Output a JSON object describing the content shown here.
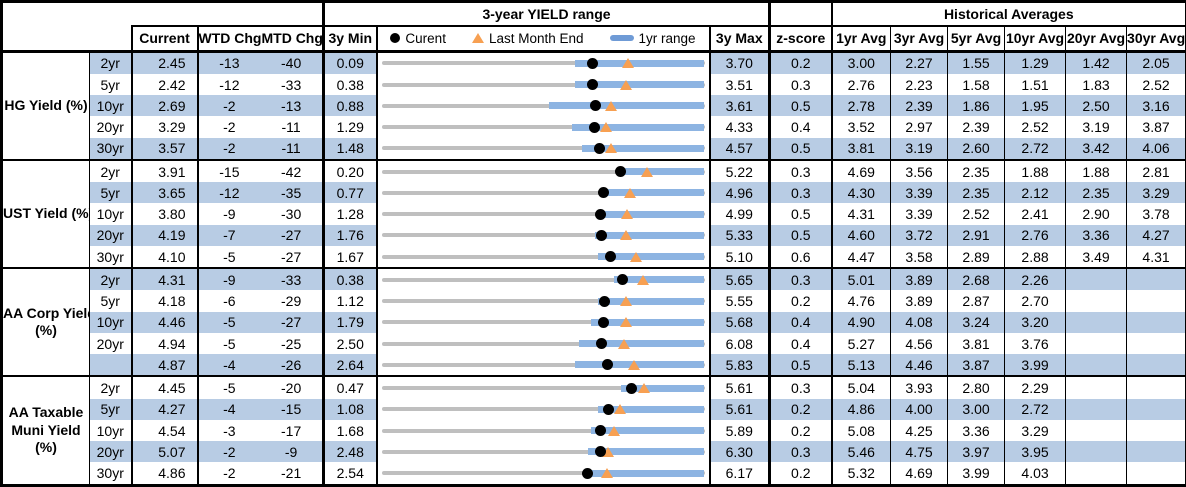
{
  "header": {
    "range_title": "3-year YIELD range",
    "historical_title": "Historical Averages",
    "col_current": "Current",
    "col_wtd_chg": "WTD Chg",
    "col_mtd_chg": "MTD Chg",
    "col_3y_min": "3y Min",
    "col_3y_max": "3y Max",
    "col_zscore": "z-score",
    "avg_cols": [
      "1yr Avg",
      "3yr Avg",
      "5yr Avg",
      "10yr Avg",
      "20yr Avg",
      "30yr Avg"
    ],
    "legend": {
      "current_label": "Curent",
      "last_month_end_label": "Last Month End",
      "range_label": "1yr range"
    }
  },
  "colors": {
    "stripe_blue": "#b8cce4",
    "bar_blue": "#8db4e2",
    "track_gray": "#bfbfbf",
    "marker_orange": "#f7a052",
    "marker_black": "#000000"
  },
  "chart_data": {
    "type": "table",
    "description": "Bond yield dashboard: current yields, WTD/MTD changes (bps), 3-year min/max with bullet-style range chart (black dot = current, orange triangle = last month end, blue bar = 1yr range), z-score, and historical average yields.",
    "sections": [
      {
        "label_lines": [
          "HG Yield (%)"
        ],
        "rows": [
          {
            "tenor": "2yr",
            "current": "2.45",
            "wtd_chg": "-13",
            "mtd_chg": "-40",
            "min_3y": "0.09",
            "max_3y": "3.70",
            "z_score": "0.2",
            "avgs": [
              "3.00",
              "2.27",
              "1.55",
              "1.29",
              "1.42",
              "2.05"
            ],
            "range": {
              "min": 0.09,
              "max": 3.7,
              "current": 2.45,
              "last_month_end": 2.85,
              "bar_low_frac": 0.6,
              "bar_high_frac": 1.0
            }
          },
          {
            "tenor": "5yr",
            "current": "2.42",
            "wtd_chg": "-12",
            "mtd_chg": "-33",
            "min_3y": "0.38",
            "max_3y": "3.51",
            "z_score": "0.3",
            "avgs": [
              "2.76",
              "2.23",
              "1.58",
              "1.51",
              "1.83",
              "2.52"
            ],
            "range": {
              "min": 0.38,
              "max": 3.51,
              "current": 2.42,
              "last_month_end": 2.75,
              "bar_low_frac": 0.6,
              "bar_high_frac": 1.0
            }
          },
          {
            "tenor": "10yr",
            "current": "2.69",
            "wtd_chg": "-2",
            "mtd_chg": "-13",
            "min_3y": "0.88",
            "max_3y": "3.61",
            "z_score": "0.5",
            "avgs": [
              "2.78",
              "2.39",
              "1.86",
              "1.95",
              "2.50",
              "3.16"
            ],
            "range": {
              "min": 0.88,
              "max": 3.61,
              "current": 2.69,
              "last_month_end": 2.82,
              "bar_low_frac": 0.52,
              "bar_high_frac": 1.0
            }
          },
          {
            "tenor": "20yr",
            "current": "3.29",
            "wtd_chg": "-2",
            "mtd_chg": "-11",
            "min_3y": "1.29",
            "max_3y": "4.33",
            "z_score": "0.4",
            "avgs": [
              "3.52",
              "2.97",
              "2.39",
              "2.52",
              "3.19",
              "3.87"
            ],
            "range": {
              "min": 1.29,
              "max": 4.33,
              "current": 3.29,
              "last_month_end": 3.4,
              "bar_low_frac": 0.59,
              "bar_high_frac": 1.0
            }
          },
          {
            "tenor": "30yr",
            "current": "3.57",
            "wtd_chg": "-2",
            "mtd_chg": "-11",
            "min_3y": "1.48",
            "max_3y": "4.57",
            "z_score": "0.5",
            "avgs": [
              "3.81",
              "3.19",
              "2.60",
              "2.72",
              "3.42",
              "4.06"
            ],
            "range": {
              "min": 1.48,
              "max": 4.57,
              "current": 3.57,
              "last_month_end": 3.68,
              "bar_low_frac": 0.62,
              "bar_high_frac": 1.0
            }
          }
        ]
      },
      {
        "label_lines": [
          "UST Yield (%)"
        ],
        "rows": [
          {
            "tenor": "2yr",
            "current": "3.91",
            "wtd_chg": "-15",
            "mtd_chg": "-42",
            "min_3y": "0.20",
            "max_3y": "5.22",
            "z_score": "0.3",
            "avgs": [
              "4.69",
              "3.56",
              "2.35",
              "1.88",
              "1.88",
              "2.81"
            ],
            "range": {
              "min": 0.2,
              "max": 5.22,
              "current": 3.91,
              "last_month_end": 4.33,
              "bar_low_frac": 0.73,
              "bar_high_frac": 1.0
            }
          },
          {
            "tenor": "5yr",
            "current": "3.65",
            "wtd_chg": "-12",
            "mtd_chg": "-35",
            "min_3y": "0.77",
            "max_3y": "4.96",
            "z_score": "0.3",
            "avgs": [
              "4.30",
              "3.39",
              "2.35",
              "2.12",
              "2.35",
              "3.29"
            ],
            "range": {
              "min": 0.77,
              "max": 4.96,
              "current": 3.65,
              "last_month_end": 4.0,
              "bar_low_frac": 0.68,
              "bar_high_frac": 1.0
            }
          },
          {
            "tenor": "10yr",
            "current": "3.80",
            "wtd_chg": "-9",
            "mtd_chg": "-30",
            "min_3y": "1.28",
            "max_3y": "4.99",
            "z_score": "0.5",
            "avgs": [
              "4.31",
              "3.39",
              "2.52",
              "2.41",
              "2.90",
              "3.78"
            ],
            "range": {
              "min": 1.28,
              "max": 4.99,
              "current": 3.8,
              "last_month_end": 4.1,
              "bar_low_frac": 0.67,
              "bar_high_frac": 1.0
            }
          },
          {
            "tenor": "20yr",
            "current": "4.19",
            "wtd_chg": "-7",
            "mtd_chg": "-27",
            "min_3y": "1.76",
            "max_3y": "5.33",
            "z_score": "0.5",
            "avgs": [
              "4.60",
              "3.72",
              "2.91",
              "2.76",
              "3.36",
              "4.27"
            ],
            "range": {
              "min": 1.76,
              "max": 5.33,
              "current": 4.19,
              "last_month_end": 4.46,
              "bar_low_frac": 0.66,
              "bar_high_frac": 1.0
            }
          },
          {
            "tenor": "30yr",
            "current": "4.10",
            "wtd_chg": "-5",
            "mtd_chg": "-27",
            "min_3y": "1.67",
            "max_3y": "5.10",
            "z_score": "0.6",
            "avgs": [
              "4.47",
              "3.58",
              "2.89",
              "2.88",
              "3.49",
              "4.31"
            ],
            "range": {
              "min": 1.67,
              "max": 5.1,
              "current": 4.1,
              "last_month_end": 4.37,
              "bar_low_frac": 0.67,
              "bar_high_frac": 1.0
            }
          }
        ]
      },
      {
        "label_lines": [
          "AA Corp Yield",
          "(%)"
        ],
        "rows": [
          {
            "tenor": "2yr",
            "current": "4.31",
            "wtd_chg": "-9",
            "mtd_chg": "-33",
            "min_3y": "0.38",
            "max_3y": "5.65",
            "z_score": "0.3",
            "avgs": [
              "5.01",
              "3.89",
              "2.68",
              "2.26",
              "",
              ""
            ],
            "range": {
              "min": 0.38,
              "max": 5.65,
              "current": 4.31,
              "last_month_end": 4.64,
              "bar_low_frac": 0.72,
              "bar_high_frac": 1.0
            }
          },
          {
            "tenor": "5yr",
            "current": "4.18",
            "wtd_chg": "-6",
            "mtd_chg": "-29",
            "min_3y": "1.12",
            "max_3y": "5.55",
            "z_score": "0.2",
            "avgs": [
              "4.76",
              "3.89",
              "2.87",
              "2.70",
              "",
              ""
            ],
            "range": {
              "min": 1.12,
              "max": 5.55,
              "current": 4.18,
              "last_month_end": 4.47,
              "bar_low_frac": 0.67,
              "bar_high_frac": 1.0
            }
          },
          {
            "tenor": "10yr",
            "current": "4.46",
            "wtd_chg": "-5",
            "mtd_chg": "-27",
            "min_3y": "1.79",
            "max_3y": "5.68",
            "z_score": "0.4",
            "avgs": [
              "4.90",
              "4.08",
              "3.24",
              "3.20",
              "",
              ""
            ],
            "range": {
              "min": 1.79,
              "max": 5.68,
              "current": 4.46,
              "last_month_end": 4.73,
              "bar_low_frac": 0.65,
              "bar_high_frac": 1.0
            }
          },
          {
            "tenor": "20yr",
            "current": "4.94",
            "wtd_chg": "-5",
            "mtd_chg": "-25",
            "min_3y": "2.50",
            "max_3y": "6.08",
            "z_score": "0.4",
            "avgs": [
              "5.27",
              "4.56",
              "3.81",
              "3.76",
              "",
              ""
            ],
            "range": {
              "min": 2.5,
              "max": 6.08,
              "current": 4.94,
              "last_month_end": 5.19,
              "bar_low_frac": 0.61,
              "bar_high_frac": 1.0
            }
          },
          {
            "tenor": "",
            "current": "4.87",
            "wtd_chg": "-4",
            "mtd_chg": "-26",
            "min_3y": "2.64",
            "max_3y": "5.83",
            "z_score": "0.5",
            "avgs": [
              "5.13",
              "4.46",
              "3.87",
              "3.99",
              "",
              ""
            ],
            "range": {
              "min": 2.64,
              "max": 5.83,
              "current": 4.87,
              "last_month_end": 5.13,
              "bar_low_frac": 0.6,
              "bar_high_frac": 1.0
            }
          }
        ]
      },
      {
        "label_lines": [
          "AA Taxable",
          "Muni Yield",
          "(%)"
        ],
        "rows": [
          {
            "tenor": "2yr",
            "current": "4.45",
            "wtd_chg": "-5",
            "mtd_chg": "-20",
            "min_3y": "0.47",
            "max_3y": "5.61",
            "z_score": "0.3",
            "avgs": [
              "5.04",
              "3.93",
              "2.80",
              "2.29",
              "",
              ""
            ],
            "range": {
              "min": 0.47,
              "max": 5.61,
              "current": 4.45,
              "last_month_end": 4.65,
              "bar_low_frac": 0.74,
              "bar_high_frac": 1.0
            }
          },
          {
            "tenor": "5yr",
            "current": "4.27",
            "wtd_chg": "-4",
            "mtd_chg": "-15",
            "min_3y": "1.08",
            "max_3y": "5.61",
            "z_score": "0.2",
            "avgs": [
              "4.86",
              "4.00",
              "3.00",
              "2.72",
              "",
              ""
            ],
            "range": {
              "min": 1.08,
              "max": 5.61,
              "current": 4.27,
              "last_month_end": 4.42,
              "bar_low_frac": 0.67,
              "bar_high_frac": 1.0
            }
          },
          {
            "tenor": "10yr",
            "current": "4.54",
            "wtd_chg": "-3",
            "mtd_chg": "-17",
            "min_3y": "1.68",
            "max_3y": "5.89",
            "z_score": "0.2",
            "avgs": [
              "5.08",
              "4.25",
              "3.36",
              "3.29",
              "",
              ""
            ],
            "range": {
              "min": 1.68,
              "max": 5.89,
              "current": 4.54,
              "last_month_end": 4.71,
              "bar_low_frac": 0.65,
              "bar_high_frac": 1.0
            }
          },
          {
            "tenor": "20yr",
            "current": "5.07",
            "wtd_chg": "-2",
            "mtd_chg": "-9",
            "min_3y": "2.48",
            "max_3y": "6.30",
            "z_score": "0.3",
            "avgs": [
              "5.46",
              "4.75",
              "3.97",
              "3.95",
              "",
              ""
            ],
            "range": {
              "min": 2.48,
              "max": 6.3,
              "current": 5.07,
              "last_month_end": 5.16,
              "bar_low_frac": 0.64,
              "bar_high_frac": 1.0
            }
          },
          {
            "tenor": "30yr",
            "current": "4.86",
            "wtd_chg": "-2",
            "mtd_chg": "-21",
            "min_3y": "2.54",
            "max_3y": "6.17",
            "z_score": "0.2",
            "avgs": [
              "5.32",
              "4.69",
              "3.99",
              "4.03",
              "",
              ""
            ],
            "range": {
              "min": 2.54,
              "max": 6.17,
              "current": 4.86,
              "last_month_end": 5.07,
              "bar_low_frac": 0.63,
              "bar_high_frac": 1.0
            }
          }
        ]
      }
    ]
  }
}
